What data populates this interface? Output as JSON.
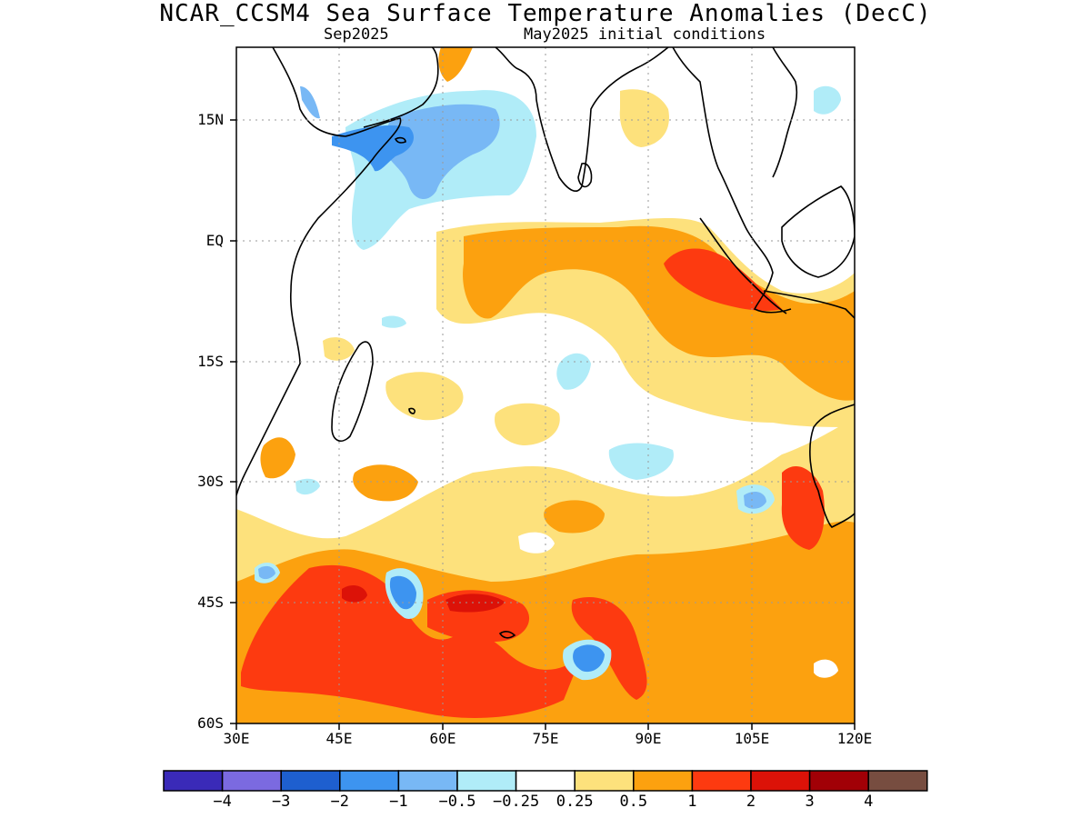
{
  "title": "NCAR_CCSM4 Sea Surface Temperature Anomalies (DecC)",
  "subtitle_left": "Sep2025",
  "subtitle_right": "May2025 initial conditions",
  "y_labels": [
    "15N",
    "EQ",
    "15S",
    "30S",
    "45S",
    "60S"
  ],
  "x_labels": [
    "30E",
    "45E",
    "60E",
    "75E",
    "90E",
    "105E",
    "120E"
  ],
  "colorbar": {
    "colors": [
      "#3a2ab8",
      "#7b6ae0",
      "#1e5fcf",
      "#3d94f0",
      "#78b8f5",
      "#b0ecf8",
      "#ffffff",
      "#fde17c",
      "#fca10f",
      "#fd3a10",
      "#dc1208",
      "#a10006",
      "#774d40"
    ],
    "labels": [
      "−4",
      "−3",
      "−2",
      "−1",
      "−0.5",
      "−0.25",
      "0.25",
      "0.5",
      "1",
      "2",
      "3",
      "4"
    ]
  }
}
